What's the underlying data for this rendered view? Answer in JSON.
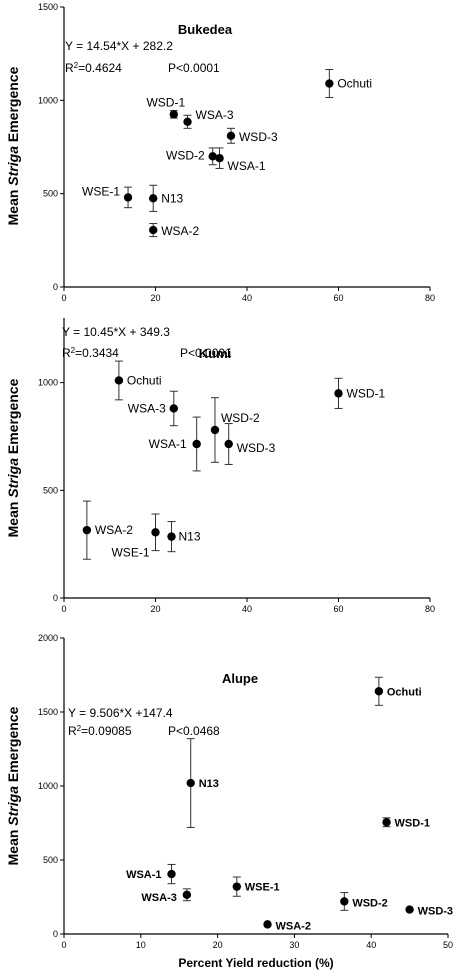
{
  "y_axis_label_prefix": "Mean ",
  "y_axis_label_italic": "Striga",
  "y_axis_label_suffix": " Emergence",
  "chart_data": [
    {
      "type": "scatter",
      "title": "Bukedea",
      "equation": "Y = 14.54*X + 282.2",
      "r2_label": "R",
      "r2_value": "=0.4624",
      "p_value": "P<0.0001",
      "xlim": [
        0,
        80
      ],
      "ylim": [
        0,
        1500
      ],
      "xticks": [
        "0",
        "20",
        "40",
        "60",
        "80"
      ],
      "yticks": [
        "0",
        "500",
        "1000",
        "1500"
      ],
      "xlabel": "",
      "points": [
        {
          "label": "Ochuti",
          "x": 58,
          "y": 1090,
          "err": 75
        },
        {
          "label": "WSD-1",
          "x": 24,
          "y": 925,
          "err": 20
        },
        {
          "label": "WSA-3",
          "x": 27,
          "y": 885,
          "err": 35
        },
        {
          "label": "WSD-3",
          "x": 36.5,
          "y": 810,
          "err": 40
        },
        {
          "label": "WSD-2",
          "x": 32.5,
          "y": 700,
          "err": 45
        },
        {
          "label": "WSA-1",
          "x": 34,
          "y": 690,
          "err": 55
        },
        {
          "label": "WSE-1",
          "x": 14,
          "y": 480,
          "err": 55
        },
        {
          "label": "N13",
          "x": 19.5,
          "y": 475,
          "err": 70
        },
        {
          "label": "WSA-2",
          "x": 19.5,
          "y": 305,
          "err": 35
        }
      ]
    },
    {
      "type": "scatter",
      "title": "Kumi",
      "equation": "Y = 10.45*X + 349.3",
      "r2_label": "R",
      "r2_value": "=0.3434",
      "p_value": "P<0.0001",
      "xlim": [
        0,
        80
      ],
      "ylim": [
        0,
        1300
      ],
      "xticks": [
        "0",
        "20",
        "40",
        "60",
        "80"
      ],
      "yticks": [
        "0",
        "500",
        "1000"
      ],
      "xlabel": "",
      "points": [
        {
          "label": "Ochuti",
          "x": 12,
          "y": 1010,
          "err": 90
        },
        {
          "label": "WSA-3",
          "x": 24,
          "y": 880,
          "err": 80
        },
        {
          "label": "WSD-2",
          "x": 33,
          "y": 780,
          "err": 150
        },
        {
          "label": "WSA-1",
          "x": 29,
          "y": 715,
          "err": 125
        },
        {
          "label": "WSD-3",
          "x": 36,
          "y": 715,
          "err": 95
        },
        {
          "label": "WSD-1",
          "x": 60,
          "y": 950,
          "err": 70
        },
        {
          "label": "WSA-2",
          "x": 5,
          "y": 315,
          "err": 135
        },
        {
          "label": "WSE-1",
          "x": 20,
          "y": 305,
          "err": 85
        },
        {
          "label": "N13",
          "x": 23.5,
          "y": 285,
          "err": 70
        }
      ]
    },
    {
      "type": "scatter",
      "title": "Alupe",
      "equation": "Y = 9.506*X +147.4",
      "r2_label": "R",
      "r2_value": "=0.09085",
      "p_value": "P<0.0468",
      "xlim": [
        0,
        50
      ],
      "ylim": [
        0,
        2000
      ],
      "xticks": [
        "0",
        "10",
        "20",
        "30",
        "40",
        "50"
      ],
      "yticks": [
        "0",
        "500",
        "1000",
        "1500",
        "2000"
      ],
      "xlabel": "Percent Yield reduction (%)",
      "points": [
        {
          "label": "Ochuti",
          "x": 41,
          "y": 1640,
          "err": 95
        },
        {
          "label": "N13",
          "x": 16.5,
          "y": 1020,
          "err": 300
        },
        {
          "label": "WSD-1",
          "x": 42,
          "y": 755,
          "err": 30
        },
        {
          "label": "WSA-1",
          "x": 14,
          "y": 405,
          "err": 65
        },
        {
          "label": "WSE-1",
          "x": 22.5,
          "y": 320,
          "err": 65
        },
        {
          "label": "WSA-3",
          "x": 16,
          "y": 265,
          "err": 40
        },
        {
          "label": "WSD-2",
          "x": 36.5,
          "y": 220,
          "err": 60
        },
        {
          "label": "WSD-3",
          "x": 45,
          "y": 165,
          "err": 0
        },
        {
          "label": "WSA-2",
          "x": 26.5,
          "y": 65,
          "err": 0
        }
      ]
    }
  ]
}
